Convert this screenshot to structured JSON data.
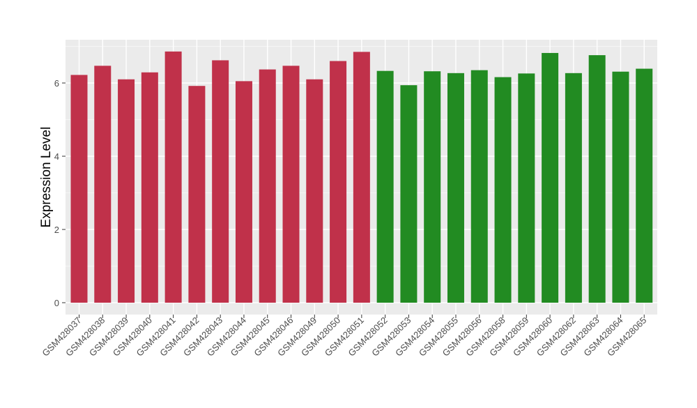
{
  "chart_data": {
    "type": "bar",
    "title": "",
    "xlabel": "",
    "ylabel": "Expression Level",
    "ylim": [
      0,
      7.15
    ],
    "yticks": [
      0,
      2,
      4,
      6
    ],
    "grid": true,
    "legend": "none",
    "colors": {
      "group1": "#c0314a",
      "group2": "#228b22",
      "panel_bg": "#ebebeb",
      "grid": "#ffffff"
    },
    "categories": [
      "GSM428037",
      "GSM428038",
      "GSM428039",
      "GSM428040",
      "GSM428041",
      "GSM428042",
      "GSM428043",
      "GSM428044",
      "GSM428045",
      "GSM428046",
      "GSM428049",
      "GSM428050",
      "GSM428051",
      "GSM428052",
      "GSM428053",
      "GSM428054",
      "GSM428055",
      "GSM428056",
      "GSM428058",
      "GSM428059",
      "GSM428060",
      "GSM428062",
      "GSM428063",
      "GSM428064",
      "GSM428065"
    ],
    "values": [
      6.22,
      6.47,
      6.1,
      6.29,
      6.86,
      5.92,
      6.62,
      6.05,
      6.37,
      6.47,
      6.1,
      6.6,
      6.85,
      6.33,
      5.94,
      6.32,
      6.27,
      6.35,
      6.16,
      6.26,
      6.82,
      6.27,
      6.76,
      6.31,
      6.39
    ],
    "groups": [
      1,
      1,
      1,
      1,
      1,
      1,
      1,
      1,
      1,
      1,
      1,
      1,
      1,
      2,
      2,
      2,
      2,
      2,
      2,
      2,
      2,
      2,
      2,
      2,
      2
    ]
  }
}
